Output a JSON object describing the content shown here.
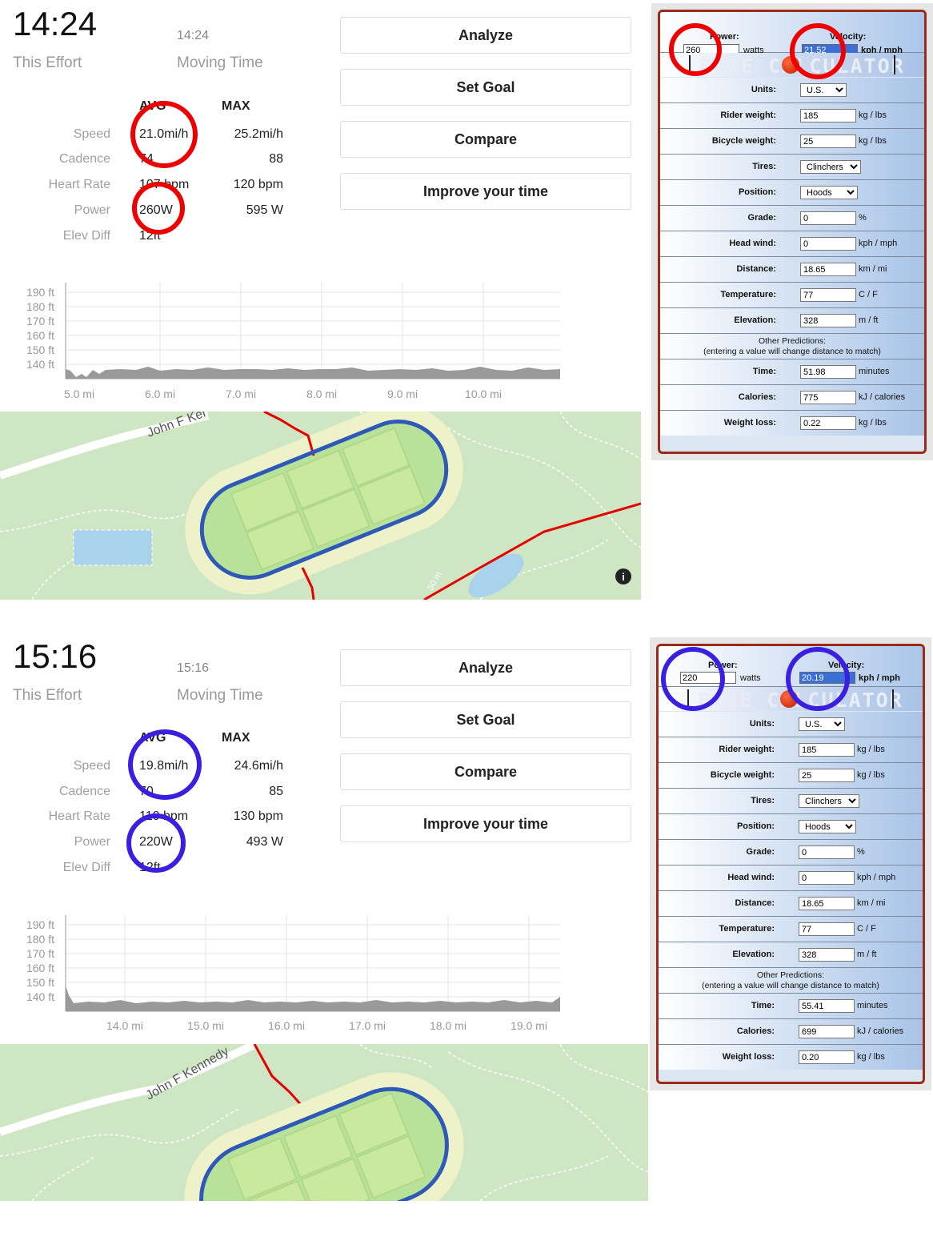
{
  "panels": [
    {
      "time_big": "14:24",
      "time_small": "14:24",
      "this_effort": "This Effort",
      "moving_time": "Moving Time",
      "avg_header": "AVG",
      "max_header": "MAX",
      "rows": [
        {
          "label": "Speed",
          "avg": "21.0mi/h",
          "max": "25.2mi/h"
        },
        {
          "label": "Cadence",
          "avg": "74",
          "max": "88"
        },
        {
          "label": "Heart Rate",
          "avg": "107 bpm",
          "max": "120 bpm"
        },
        {
          "label": "Power",
          "avg": "260W",
          "max": "595 W"
        },
        {
          "label": "Elev Diff",
          "avg": "12ft",
          "max": ""
        }
      ],
      "buttons": [
        "Analyze",
        "Set Goal",
        "Compare",
        "Improve your time"
      ],
      "elev_ticks": [
        "190 ft",
        "180 ft",
        "170 ft",
        "160 ft",
        "150 ft",
        "140 ft"
      ],
      "x_ticks": [
        "5.0 mi",
        "6.0 mi",
        "7.0 mi",
        "8.0 mi",
        "9.0 mi",
        "10.0 mi"
      ],
      "road_label": "John F Ker",
      "scale_label": "50 m",
      "circle_color": "#ee0000"
    },
    {
      "time_big": "15:16",
      "time_small": "15:16",
      "this_effort": "This Effort",
      "moving_time": "Moving Time",
      "avg_header": "AVG",
      "max_header": "MAX",
      "rows": [
        {
          "label": "Speed",
          "avg": "19.8mi/h",
          "max": "24.6mi/h"
        },
        {
          "label": "Cadence",
          "avg": "70",
          "max": "85"
        },
        {
          "label": "Heart Rate",
          "avg": "110 bpm",
          "max": "130 bpm"
        },
        {
          "label": "Power",
          "avg": "220W",
          "max": "493 W"
        },
        {
          "label": "Elev Diff",
          "avg": "12ft",
          "max": ""
        }
      ],
      "buttons": [
        "Analyze",
        "Set Goal",
        "Compare",
        "Improve your time"
      ],
      "elev_ticks": [
        "190 ft",
        "180 ft",
        "170 ft",
        "160 ft",
        "150 ft",
        "140 ft"
      ],
      "x_ticks": [
        "14.0 mi",
        "15.0 mi",
        "16.0 mi",
        "17.0 mi",
        "18.0 mi",
        "19.0 mi"
      ],
      "road_label": "John F Kennedy",
      "scale_label": "",
      "circle_color": "#3b1fe0"
    }
  ],
  "calculators": [
    {
      "power_label": "Power:",
      "power_value": "260",
      "power_unit": "watts",
      "velocity_label": "Velocity:",
      "velocity_value": "21.52",
      "velocity_unit": "kph / mph",
      "banner": "BIKE CALCULATOR",
      "rows": [
        {
          "label": "Units:",
          "type": "select",
          "value": "U.S.",
          "unit": ""
        },
        {
          "label": "Rider weight:",
          "type": "input",
          "value": "185",
          "unit": "kg / lbs"
        },
        {
          "label": "Bicycle weight:",
          "type": "input",
          "value": "25",
          "unit": "kg / lbs"
        },
        {
          "label": "Tires:",
          "type": "select",
          "value": "Clinchers",
          "unit": ""
        },
        {
          "label": "Position:",
          "type": "select",
          "value": "Hoods",
          "unit": ""
        },
        {
          "label": "Grade:",
          "type": "input",
          "value": "0",
          "unit": "%"
        },
        {
          "label": "Head wind:",
          "type": "input",
          "value": "0",
          "unit": "kph / mph"
        },
        {
          "label": "Distance:",
          "type": "input",
          "value": "18.65",
          "unit": "km / mi"
        },
        {
          "label": "Temperature:",
          "type": "input",
          "value": "77",
          "unit": "C / F"
        },
        {
          "label": "Elevation:",
          "type": "input",
          "value": "328",
          "unit": "m / ft"
        },
        {
          "label": "",
          "type": "note",
          "value": "Other Predictions:",
          "unit": "(entering a value will change distance to match)"
        },
        {
          "label": "Time:",
          "type": "input",
          "value": "51.98",
          "unit": "minutes"
        },
        {
          "label": "Calories:",
          "type": "input",
          "value": "775",
          "unit": "kJ / calories"
        },
        {
          "label": "Weight loss:",
          "type": "input",
          "value": "0.22",
          "unit": "kg / lbs"
        }
      ]
    },
    {
      "power_label": "Power:",
      "power_value": "220",
      "power_unit": "watts",
      "velocity_label": "Velocity:",
      "velocity_value": "20.19",
      "velocity_unit": "kph / mph",
      "banner": "BIKE CALCULATOR",
      "rows": [
        {
          "label": "Units:",
          "type": "select",
          "value": "U.S.",
          "unit": ""
        },
        {
          "label": "Rider weight:",
          "type": "input",
          "value": "185",
          "unit": "kg / lbs"
        },
        {
          "label": "Bicycle weight:",
          "type": "input",
          "value": "25",
          "unit": "kg / lbs"
        },
        {
          "label": "Tires:",
          "type": "select",
          "value": "Clinchers",
          "unit": ""
        },
        {
          "label": "Position:",
          "type": "select",
          "value": "Hoods",
          "unit": ""
        },
        {
          "label": "Grade:",
          "type": "input",
          "value": "0",
          "unit": "%"
        },
        {
          "label": "Head wind:",
          "type": "input",
          "value": "0",
          "unit": "kph / mph"
        },
        {
          "label": "Distance:",
          "type": "input",
          "value": "18.65",
          "unit": "km / mi"
        },
        {
          "label": "Temperature:",
          "type": "input",
          "value": "77",
          "unit": "C / F"
        },
        {
          "label": "Elevation:",
          "type": "input",
          "value": "328",
          "unit": "m / ft"
        },
        {
          "label": "",
          "type": "note",
          "value": "Other Predictions:",
          "unit": "(entering a value will change distance to match)"
        },
        {
          "label": "Time:",
          "type": "input",
          "value": "55.41",
          "unit": "minutes"
        },
        {
          "label": "Calories:",
          "type": "input",
          "value": "699",
          "unit": "kJ / calories"
        },
        {
          "label": "Weight loss:",
          "type": "input",
          "value": "0.20",
          "unit": "kg / lbs"
        }
      ]
    }
  ]
}
